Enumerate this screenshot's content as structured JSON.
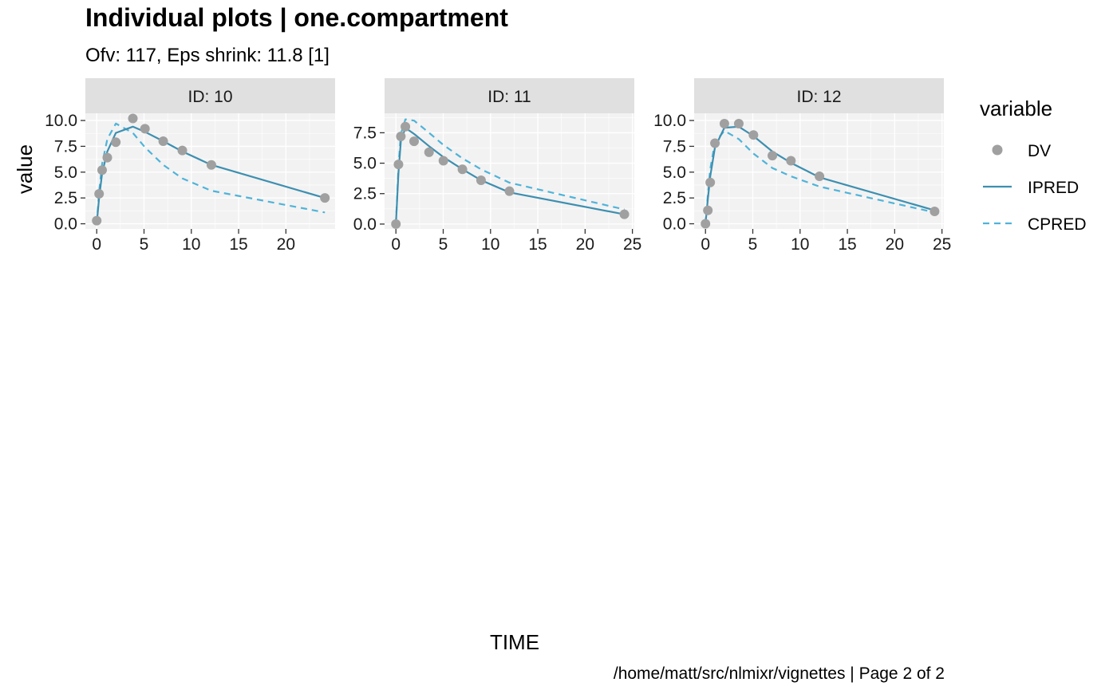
{
  "title": "Individual plots | one.compartment",
  "subtitle": "Ofv: 117, Eps shrink: 11.8 [1]",
  "caption": "/home/matt/src/nlmixr/vignettes | Page 2 of 2",
  "colors": {
    "panel_bg": "#f2f2f2",
    "strip_bg": "#e0e0e0",
    "grid": "#ffffff",
    "dv": "#a0a0a0",
    "ipred": "#3d8fb0",
    "cpred": "#4fb3d9"
  },
  "legend": {
    "title": "variable",
    "items": [
      {
        "label": "DV",
        "kind": "point"
      },
      {
        "label": "IPRED",
        "kind": "solid"
      },
      {
        "label": "CPRED",
        "kind": "dashed"
      }
    ]
  },
  "chart_data": [
    {
      "type": "line",
      "strip": "ID: 10",
      "xlabel": "TIME",
      "ylabel": "value",
      "xlim": [
        -1.2,
        25.2
      ],
      "ylim": [
        -0.5,
        10.7
      ],
      "xticks": [
        0,
        5,
        10,
        15,
        20
      ],
      "yticks": [
        0.0,
        2.5,
        5.0,
        7.5,
        10.0
      ],
      "ytick_labels": [
        "0.0",
        "2.5",
        "5.0",
        "7.5",
        "10.0"
      ],
      "series": [
        {
          "name": "DV",
          "x": [
            0,
            0.25,
            0.57,
            1.12,
            2.02,
            3.82,
            5.1,
            7.03,
            9.05,
            12.12,
            24.12
          ],
          "y": [
            0.3,
            2.9,
            5.2,
            6.4,
            7.9,
            10.2,
            9.2,
            8.0,
            7.1,
            5.7,
            2.5
          ]
        },
        {
          "name": "IPRED",
          "x": [
            0,
            0.25,
            0.57,
            1.12,
            2.02,
            3.82,
            5.1,
            7.03,
            9.05,
            12.12,
            24.12
          ],
          "y": [
            0.0,
            2.5,
            4.9,
            7.0,
            8.8,
            9.4,
            8.9,
            8.0,
            7.0,
            5.7,
            2.5
          ]
        },
        {
          "name": "CPRED",
          "x": [
            0,
            0.25,
            0.57,
            1.12,
            2.02,
            3.82,
            5.1,
            7.03,
            9.05,
            12.12,
            24.12
          ],
          "y": [
            0.0,
            3.1,
            5.8,
            8.2,
            9.7,
            8.8,
            7.4,
            5.7,
            4.4,
            3.2,
            1.1
          ]
        }
      ]
    },
    {
      "type": "line",
      "strip": "ID: 11",
      "xlabel": "TIME",
      "ylabel": "value",
      "xlim": [
        -1.2,
        25.2
      ],
      "ylim": [
        -0.4,
        9.1
      ],
      "xticks": [
        0,
        5,
        10,
        15,
        20,
        25
      ],
      "yticks": [
        0.0,
        2.5,
        5.0,
        7.5
      ],
      "ytick_labels": [
        "0.0",
        "2.5",
        "5.0",
        "7.5"
      ],
      "series": [
        {
          "name": "DV",
          "x": [
            0,
            0.27,
            0.52,
            1.0,
            1.92,
            3.5,
            5.02,
            7.03,
            9.0,
            12.0,
            24.15
          ],
          "y": [
            0.0,
            4.9,
            7.2,
            8.0,
            6.8,
            5.9,
            5.2,
            4.5,
            3.6,
            2.7,
            0.8
          ]
        },
        {
          "name": "IPRED",
          "x": [
            0,
            0.27,
            0.52,
            1.0,
            1.92,
            3.5,
            5.02,
            7.03,
            9.0,
            12.0,
            24.15
          ],
          "y": [
            0.0,
            4.2,
            6.8,
            7.9,
            7.4,
            6.4,
            5.5,
            4.5,
            3.6,
            2.6,
            0.8
          ]
        },
        {
          "name": "CPRED",
          "x": [
            0,
            0.27,
            0.52,
            1.0,
            1.92,
            3.5,
            5.02,
            7.03,
            9.0,
            12.0,
            24.15
          ],
          "y": [
            0.0,
            4.7,
            7.4,
            8.6,
            8.5,
            7.5,
            6.5,
            5.4,
            4.5,
            3.4,
            1.2
          ]
        }
      ]
    },
    {
      "type": "line",
      "strip": "ID: 12",
      "xlabel": "TIME",
      "ylabel": "value",
      "xlim": [
        -1.2,
        25.2
      ],
      "ylim": [
        -0.5,
        10.7
      ],
      "xticks": [
        0,
        5,
        10,
        15,
        20,
        25
      ],
      "yticks": [
        0.0,
        2.5,
        5.0,
        7.5,
        10.0
      ],
      "ytick_labels": [
        "0.0",
        "2.5",
        "5.0",
        "7.5",
        "10.0"
      ],
      "series": [
        {
          "name": "DV",
          "x": [
            0,
            0.25,
            0.5,
            1.0,
            2.0,
            3.52,
            5.07,
            7.07,
            9.03,
            12.05,
            24.22
          ],
          "y": [
            0.0,
            1.3,
            4.0,
            7.8,
            9.7,
            9.7,
            8.6,
            6.6,
            6.1,
            4.6,
            1.2
          ]
        },
        {
          "name": "IPRED",
          "x": [
            0,
            0.25,
            0.5,
            1.0,
            2.0,
            3.52,
            5.07,
            7.07,
            9.03,
            12.05,
            24.22
          ],
          "y": [
            0.0,
            2.4,
            4.6,
            7.4,
            9.3,
            9.4,
            8.5,
            7.0,
            5.9,
            4.5,
            1.3
          ]
        },
        {
          "name": "CPRED",
          "x": [
            0,
            0.25,
            0.5,
            1.0,
            2.0,
            3.52,
            5.07,
            7.07,
            9.03,
            12.05,
            24.22
          ],
          "y": [
            0.0,
            2.8,
            5.3,
            7.9,
            9.0,
            8.2,
            6.8,
            5.4,
            4.6,
            3.6,
            1.1
          ]
        }
      ]
    }
  ]
}
